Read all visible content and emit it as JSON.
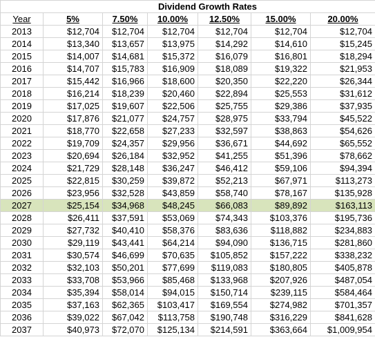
{
  "title": "Dividend Growth Rates",
  "header": [
    "Year",
    "5%",
    "7.50%",
    "10.00%",
    "12.50%",
    "15.00%",
    "20.00%"
  ],
  "rows": [
    [
      "2013",
      "$12,704",
      "$12,704",
      "$12,704",
      "$12,704",
      "$12,704",
      "$12,704"
    ],
    [
      "2014",
      "$13,340",
      "$13,657",
      "$13,975",
      "$14,292",
      "$14,610",
      "$15,245"
    ],
    [
      "2015",
      "$14,007",
      "$14,681",
      "$15,372",
      "$16,079",
      "$16,801",
      "$18,294"
    ],
    [
      "2016",
      "$14,707",
      "$15,783",
      "$16,909",
      "$18,089",
      "$19,322",
      "$21,953"
    ],
    [
      "2017",
      "$15,442",
      "$16,966",
      "$18,600",
      "$20,350",
      "$22,220",
      "$26,344"
    ],
    [
      "2018",
      "$16,214",
      "$18,239",
      "$20,460",
      "$22,894",
      "$25,553",
      "$31,612"
    ],
    [
      "2019",
      "$17,025",
      "$19,607",
      "$22,506",
      "$25,755",
      "$29,386",
      "$37,935"
    ],
    [
      "2020",
      "$17,876",
      "$21,077",
      "$24,757",
      "$28,975",
      "$33,794",
      "$45,522"
    ],
    [
      "2021",
      "$18,770",
      "$22,658",
      "$27,233",
      "$32,597",
      "$38,863",
      "$54,626"
    ],
    [
      "2022",
      "$19,709",
      "$24,357",
      "$29,956",
      "$36,671",
      "$44,692",
      "$65,552"
    ],
    [
      "2023",
      "$20,694",
      "$26,184",
      "$32,952",
      "$41,255",
      "$51,396",
      "$78,662"
    ],
    [
      "2024",
      "$21,729",
      "$28,148",
      "$36,247",
      "$46,412",
      "$59,106",
      "$94,394"
    ],
    [
      "2025",
      "$22,815",
      "$30,259",
      "$39,872",
      "$52,213",
      "$67,971",
      "$113,273"
    ],
    [
      "2026",
      "$23,956",
      "$32,528",
      "$43,859",
      "$58,740",
      "$78,167",
      "$135,928"
    ],
    [
      "2027",
      "$25,154",
      "$34,968",
      "$48,245",
      "$66,083",
      "$89,892",
      "$163,113"
    ],
    [
      "2028",
      "$26,411",
      "$37,591",
      "$53,069",
      "$74,343",
      "$103,376",
      "$195,736"
    ],
    [
      "2029",
      "$27,732",
      "$40,410",
      "$58,376",
      "$83,636",
      "$118,882",
      "$234,883"
    ],
    [
      "2030",
      "$29,119",
      "$43,441",
      "$64,214",
      "$94,090",
      "$136,715",
      "$281,860"
    ],
    [
      "2031",
      "$30,574",
      "$46,699",
      "$70,635",
      "$105,852",
      "$157,222",
      "$338,232"
    ],
    [
      "2032",
      "$32,103",
      "$50,201",
      "$77,699",
      "$119,083",
      "$180,805",
      "$405,878"
    ],
    [
      "2033",
      "$33,708",
      "$53,966",
      "$85,468",
      "$133,968",
      "$207,926",
      "$487,054"
    ],
    [
      "2034",
      "$35,394",
      "$58,014",
      "$94,015",
      "$150,714",
      "$239,115",
      "$584,464"
    ],
    [
      "2035",
      "$37,163",
      "$62,365",
      "$103,417",
      "$169,554",
      "$274,982",
      "$701,357"
    ],
    [
      "2036",
      "$39,022",
      "$67,042",
      "$113,758",
      "$190,748",
      "$316,229",
      "$841,628"
    ],
    [
      "2037",
      "$40,973",
      "$72,070",
      "$125,134",
      "$214,591",
      "$363,664",
      "$1,009,954"
    ]
  ]
}
